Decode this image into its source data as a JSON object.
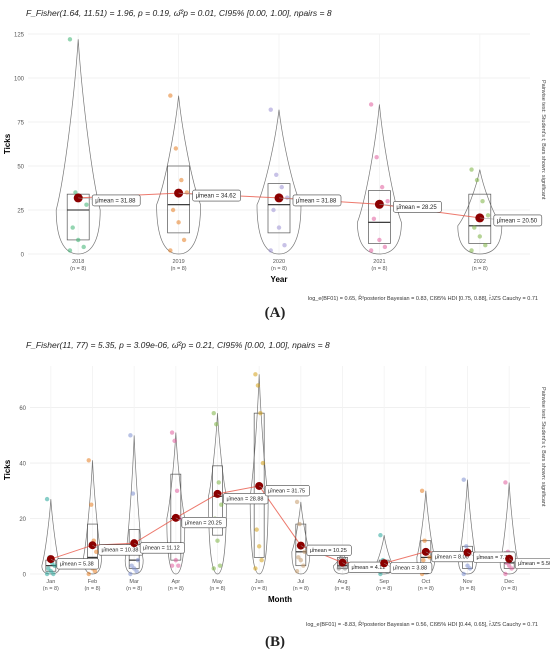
{
  "chart_data": [
    {
      "type": "violin",
      "panel_label": "(A)",
      "stat_title": "F_Fisher(1.64, 11.51) = 1.96, p = 0.19, ω̂²p = 0.01, CI95% [0.00, 1.00], npairs = 8",
      "footer": "log_e(BF01) = 0.65, R̂²posterior Bayesian = 0.83, CI95% HDI [0.75, 0.88], r̂JZS Cauchy = 0.71",
      "side_note": "Pairwise test: Student's t; Bars shown: significant",
      "xlabel": "Year",
      "ylabel": "Ticks",
      "ylim": [
        0,
        125
      ],
      "yticks": [
        0,
        25,
        50,
        75,
        100,
        125
      ],
      "categories": [
        "2018",
        "2019",
        "2020",
        "2021",
        "2022"
      ],
      "counts": [
        "(n = 8)",
        "(n = 8)",
        "(n = 8)",
        "(n = 8)",
        "(n = 8)"
      ],
      "means": [
        31.88,
        34.62,
        31.88,
        28.25,
        20.5
      ],
      "mean_labels": [
        "μ̂mean = 31.88",
        "μ̂mean = 34.62",
        "μ̂mean = 31.88",
        "μ̂mean = 28.25",
        "μ̂mean = 20.50"
      ],
      "colors": [
        "#3cb371",
        "#e67e22",
        "#9b8fd4",
        "#e05d9c",
        "#7cb342"
      ],
      "points": [
        [
          122,
          35,
          32,
          28,
          15,
          8,
          4,
          2
        ],
        [
          90,
          60,
          42,
          35,
          25,
          18,
          8,
          2
        ],
        [
          82,
          45,
          38,
          32,
          25,
          15,
          5,
          2
        ],
        [
          85,
          55,
          38,
          30,
          20,
          8,
          4,
          2
        ],
        [
          48,
          42,
          30,
          22,
          15,
          10,
          5,
          2
        ]
      ],
      "box": [
        {
          "q1": 8,
          "median": 25,
          "q3": 34
        },
        {
          "q1": 12,
          "median": 28,
          "q3": 50
        },
        {
          "q1": 12,
          "median": 28,
          "q3": 40
        },
        {
          "q1": 6,
          "median": 18,
          "q3": 36
        },
        {
          "q1": 6,
          "median": 16,
          "q3": 34
        }
      ],
      "violin_max": [
        122,
        90,
        82,
        85,
        48
      ]
    },
    {
      "type": "violin",
      "panel_label": "(B)",
      "stat_title": "F_Fisher(11, 77) = 5.35, p = 3.09e-06, ω̂²p = 0.21, CI95% [0.00, 1.00], npairs = 8",
      "footer": "log_e(BF01) = -8.83, R̂²posterior Bayesian = 0.56, CI95% HDI [0.44, 0.65], r̂JZS Cauchy = 0.71",
      "side_note": "Pairwise test: Student's t; Bars shown: significant",
      "xlabel": "Month",
      "ylabel": "Ticks",
      "ylim": [
        0,
        75
      ],
      "yticks": [
        0,
        20,
        40,
        60
      ],
      "categories": [
        "Jan",
        "Feb",
        "Mar",
        "Apr",
        "May",
        "Jun",
        "Jul",
        "Aug",
        "Sep",
        "Oct",
        "Nov",
        "Dec"
      ],
      "counts": [
        "(n = 8)",
        "(n = 8)",
        "(n = 8)",
        "(n = 8)",
        "(n = 8)",
        "(n = 8)",
        "(n = 8)",
        "(n = 8)",
        "(n = 8)",
        "(n = 8)",
        "(n = 8)",
        "(n = 8)"
      ],
      "means": [
        5.38,
        10.38,
        11.12,
        20.25,
        28.88,
        31.75,
        10.25,
        4.12,
        3.88,
        8.0,
        7.75,
        5.5
      ],
      "mean_labels": [
        "μ̂mean = 5.38",
        "μ̂mean = 10.38",
        "μ̂mean = 11.12",
        "μ̂mean = 20.25",
        "μ̂mean = 28.88",
        "μ̂mean = 31.75",
        "μ̂mean = 10.25",
        "μ̂mean = 4.12",
        "μ̂mean = 3.88",
        "μ̂mean = 8.00",
        "μ̂mean = 7.75",
        "μ̂mean = 5.50"
      ],
      "colors": [
        "#26a69a",
        "#e67e22",
        "#7e8fd0",
        "#e05d9c",
        "#7cb342",
        "#d4a017",
        "#c49a6c",
        "#8d8d8d",
        "#26a69a",
        "#e67e22",
        "#7e8fd0",
        "#e05d9c"
      ],
      "points": [
        [
          27,
          6,
          4,
          3,
          2,
          1,
          0,
          0
        ],
        [
          41,
          25,
          12,
          8,
          4,
          2,
          1,
          0
        ],
        [
          50,
          29,
          10,
          5,
          3,
          2,
          1,
          0
        ],
        [
          51,
          48,
          30,
          20,
          10,
          5,
          3,
          3
        ],
        [
          58,
          54,
          33,
          25,
          20,
          12,
          3,
          2
        ],
        [
          72,
          68,
          58,
          40,
          16,
          10,
          5,
          2
        ],
        [
          26,
          18,
          10,
          8,
          6,
          5,
          3,
          1
        ],
        [
          8,
          6,
          5,
          4,
          3,
          3,
          2,
          2
        ],
        [
          14,
          5,
          4,
          3,
          2,
          2,
          1,
          0
        ],
        [
          30,
          12,
          8,
          6,
          5,
          3,
          2,
          0
        ],
        [
          34,
          10,
          8,
          6,
          5,
          3,
          2,
          0
        ],
        [
          33,
          8,
          6,
          5,
          4,
          3,
          2,
          0
        ]
      ],
      "box": [
        {
          "q1": 1,
          "median": 3,
          "q3": 5
        },
        {
          "q1": 2,
          "median": 6,
          "q3": 18
        },
        {
          "q1": 2,
          "median": 5,
          "q3": 16
        },
        {
          "q1": 5,
          "median": 20,
          "q3": 36
        },
        {
          "q1": 14,
          "median": 28,
          "q3": 39
        },
        {
          "q1": 6,
          "median": 28,
          "q3": 58
        },
        {
          "q1": 3,
          "median": 8,
          "q3": 18
        },
        {
          "q1": 2,
          "median": 3,
          "q3": 6
        },
        {
          "q1": 1,
          "median": 3,
          "q3": 5
        },
        {
          "q1": 2,
          "median": 6,
          "q3": 12
        },
        {
          "q1": 2,
          "median": 5,
          "q3": 10
        },
        {
          "q1": 2,
          "median": 4,
          "q3": 8
        }
      ],
      "violin_max": [
        27,
        41,
        50,
        51,
        58,
        72,
        26,
        8,
        14,
        30,
        34,
        33
      ]
    }
  ]
}
